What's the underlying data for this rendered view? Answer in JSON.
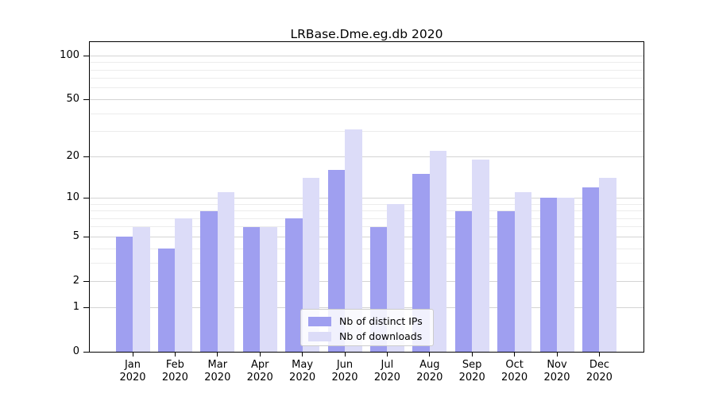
{
  "title": "LRBase.Dme.eg.db 2020",
  "chart_data": {
    "type": "bar",
    "title": "LRBase.Dme.eg.db 2020",
    "categories": [
      "Jan",
      "Feb",
      "Mar",
      "Apr",
      "May",
      "Jun",
      "Jul",
      "Aug",
      "Sep",
      "Oct",
      "Nov",
      "Dec"
    ],
    "year_label": "2020",
    "series": [
      {
        "name": "Nb of distinct IPs",
        "color": "#9f9ff0",
        "values": [
          5,
          4,
          8,
          6,
          7,
          16,
          6,
          15,
          8,
          8,
          10,
          12
        ]
      },
      {
        "name": "Nb of downloads",
        "color": "#dcdcf8",
        "values": [
          6,
          7,
          11,
          6,
          14,
          31,
          9,
          22,
          19,
          11,
          10,
          14
        ]
      }
    ],
    "xlabel": "",
    "ylabel": "",
    "y_scale": "log1p",
    "ylim": [
      0,
      124
    ],
    "y_major_ticks": [
      0,
      1,
      2,
      5,
      10,
      20,
      50,
      100
    ],
    "y_minor_gridlines": [
      3,
      4,
      6,
      7,
      8,
      9,
      30,
      40,
      60,
      70,
      80,
      90
    ],
    "grid": true,
    "legend_position": "bottom-center",
    "colors": {
      "major_grid": "#d4d4d4",
      "minor_grid": "#ececec",
      "axis_frame": "#000000",
      "background": "#ffffff"
    }
  }
}
